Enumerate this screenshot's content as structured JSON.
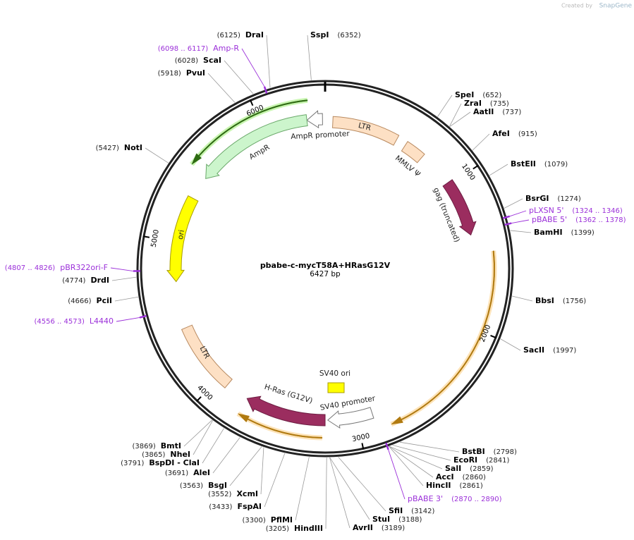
{
  "title": "pbabe-c-mycT58A+HRasG12V",
  "length": "6427 bp",
  "watermark": {
    "prefix": "Created by",
    "brand": "SnapGene"
  },
  "enzymes": [
    {
      "name": "DraI",
      "position": "(6125)"
    },
    {
      "name": "SspI",
      "position": "(6352)"
    },
    {
      "name": "ScaI",
      "position": "(6028)"
    },
    {
      "name": "PvuI",
      "position": "(5918)"
    },
    {
      "name": "NotI",
      "position": "(5427)"
    },
    {
      "name": "SpeI",
      "position": "(652)"
    },
    {
      "name": "ZraI",
      "position": "(735)"
    },
    {
      "name": "AatII",
      "position": "(737)"
    },
    {
      "name": "AfeI",
      "position": "(915)"
    },
    {
      "name": "BstEII",
      "position": "(1079)"
    },
    {
      "name": "BsrGI",
      "position": "(1274)"
    },
    {
      "name": "BamHI",
      "position": "(1399)"
    },
    {
      "name": "BbsI",
      "position": "(1756)"
    },
    {
      "name": "SacII",
      "position": "(1997)"
    },
    {
      "name": "BstBI",
      "position": "(2798)"
    },
    {
      "name": "EcoRI",
      "position": "(2841)"
    },
    {
      "name": "SalI",
      "position": "(2859)"
    },
    {
      "name": "AccI",
      "position": "(2860)"
    },
    {
      "name": "HincII",
      "position": "(2861)"
    },
    {
      "name": "SfiI",
      "position": "(3142)"
    },
    {
      "name": "StuI",
      "position": "(3188)"
    },
    {
      "name": "AvrII",
      "position": "(3189)"
    },
    {
      "name": "HindIII",
      "position": "(3205)"
    },
    {
      "name": "PflMI",
      "position": "(3300)"
    },
    {
      "name": "FspAI",
      "position": "(3433)"
    },
    {
      "name": "XcmI",
      "position": "(3552)"
    },
    {
      "name": "BsgI",
      "position": "(3563)"
    },
    {
      "name": "AleI",
      "position": "(3691)"
    },
    {
      "name": "BspDI - ClaI",
      "position": "(3791)"
    },
    {
      "name": "NheI",
      "position": "(3865)"
    },
    {
      "name": "BmtI",
      "position": "(3869)"
    },
    {
      "name": "PciI",
      "position": "(4666)"
    },
    {
      "name": "DrdI",
      "position": "(4774)"
    }
  ],
  "primers": [
    {
      "name": "Amp-R",
      "range": "(6098 .. 6117)"
    },
    {
      "name": "pLXSN 5'",
      "range": "(1324 .. 1346)"
    },
    {
      "name": "pBABE 5'",
      "range": "(1362 .. 1378)"
    },
    {
      "name": "pBR322ori-F",
      "range": "(4807 .. 4826)"
    },
    {
      "name": "L4440",
      "range": "(4556 .. 4573)"
    },
    {
      "name": "pBABE 3'",
      "range": "(2870 .. 2890)"
    }
  ],
  "features": [
    {
      "label": "LTR"
    },
    {
      "label": "MMLV Ψ"
    },
    {
      "label": "gag (truncated)"
    },
    {
      "label": "AmpR promoter"
    },
    {
      "label": "AmpR"
    },
    {
      "label": "ori"
    },
    {
      "label": "LTR"
    },
    {
      "label": "SV40 ori"
    },
    {
      "label": "SV40 promoter"
    },
    {
      "label": "H-Ras (G12V)"
    }
  ],
  "ticks": [
    1000,
    2000,
    3000,
    4000,
    5000,
    6000
  ]
}
